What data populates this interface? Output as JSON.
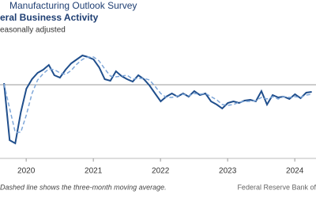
{
  "chart_data": {
    "type": "line",
    "title": "Manufacturing Outlook Survey",
    "subtitle": "eral Business Activity",
    "y_label": "easonally adjusted",
    "footnote": "Dashed line shows the three-month moving average.",
    "source": "Federal Reserve Bank of",
    "x": [
      2019.67,
      2019.753,
      2019.837,
      2019.92,
      2020.003,
      2020.087,
      2020.17,
      2020.253,
      2020.337,
      2020.42,
      2020.503,
      2020.587,
      2020.67,
      2020.753,
      2020.837,
      2020.92,
      2021.003,
      2021.087,
      2021.17,
      2021.253,
      2021.337,
      2021.42,
      2021.503,
      2021.587,
      2021.67,
      2021.753,
      2021.837,
      2021.92,
      2022.003,
      2022.087,
      2022.17,
      2022.253,
      2022.337,
      2022.42,
      2022.503,
      2022.587,
      2022.67,
      2022.753,
      2022.837,
      2022.92,
      2023.003,
      2023.087,
      2023.17,
      2023.253,
      2023.337,
      2023.42,
      2023.503,
      2023.587,
      2023.67,
      2023.753,
      2023.837,
      2023.92,
      2024.003,
      2024.087,
      2024.17,
      2024.253
    ],
    "series": [
      {
        "color": "#1f4e8c",
        "dash": false,
        "values": [
          2,
          -70,
          -74,
          -35,
          -5,
          7,
          15,
          19,
          25,
          12,
          9,
          19,
          27,
          32,
          37,
          35,
          32,
          22,
          7,
          5,
          17,
          11,
          7,
          4,
          12,
          7,
          -1,
          -11,
          -21,
          -15,
          -11,
          -15,
          -11,
          -15,
          -8,
          -13,
          -11,
          -21,
          -25,
          -30,
          -23,
          -21,
          -23,
          -20,
          -19,
          -21,
          -8,
          -25,
          -13,
          -16,
          -15,
          -18,
          -12,
          -17,
          -10,
          -9
        ]
      },
      {
        "color": "#7fa7d9",
        "dash": true,
        "values": [
          1,
          -30,
          -60,
          -60,
          -38,
          -11,
          6,
          14,
          20,
          19,
          15,
          13,
          18,
          26,
          32,
          35,
          35,
          30,
          20,
          11,
          10,
          11,
          12,
          7,
          8,
          8,
          6,
          -2,
          -11,
          -16,
          -16,
          -14,
          -12,
          -14,
          -11,
          -12,
          -11,
          -15,
          -19,
          -25,
          -26,
          -25,
          -22,
          -21,
          -21,
          -20,
          -16,
          -18,
          -15,
          -18,
          -15,
          -16,
          -15,
          -16,
          -13,
          -12
        ]
      }
    ],
    "xlim": [
      2019.61,
      2024.316
    ],
    "xticks": [
      {
        "value": 2020,
        "label": "2020"
      },
      {
        "value": 2021,
        "label": "2021"
      },
      {
        "value": 2022,
        "label": "2022"
      },
      {
        "value": 2023,
        "label": "2023"
      },
      {
        "value": 2024,
        "label": "2024"
      }
    ],
    "ylim": [
      -80,
      50
    ],
    "yticks": [
      0
    ],
    "grid": true
  }
}
